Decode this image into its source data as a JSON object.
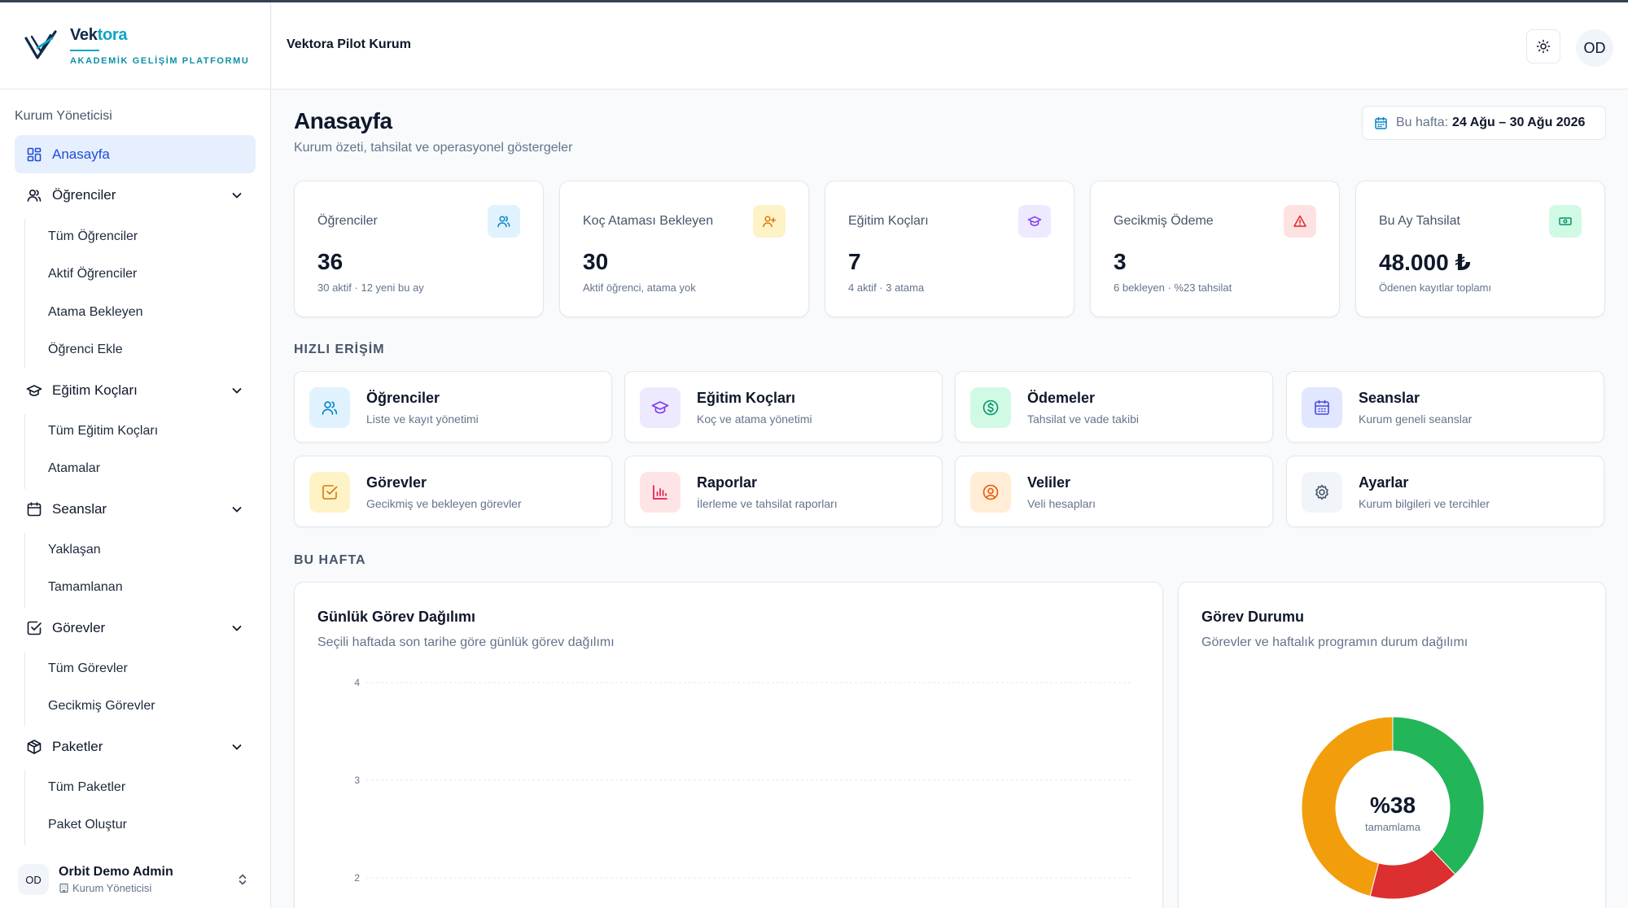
{
  "brand": {
    "name_part1": "Vek",
    "name_part2": "tora",
    "subtitle": "AKADEMİK GELİŞİM PLATFORMU"
  },
  "sidebar": {
    "role_label": "Kurum Yöneticisi",
    "home": "Anasayfa",
    "groups": [
      {
        "label": "Öğrenciler",
        "icon": "users-icon",
        "items": [
          "Tüm Öğrenciler",
          "Aktif Öğrenciler",
          "Atama Bekleyen",
          "Öğrenci Ekle"
        ]
      },
      {
        "label": "Eğitim Koçları",
        "icon": "graduation-cap-icon",
        "items": [
          "Tüm Eğitim Koçları",
          "Atamalar"
        ]
      },
      {
        "label": "Seanslar",
        "icon": "calendar-icon",
        "items": [
          "Yaklaşan",
          "Tamamlanan"
        ]
      },
      {
        "label": "Görevler",
        "icon": "checkbox-icon",
        "items": [
          "Tüm Görevler",
          "Gecikmiş Görevler"
        ]
      },
      {
        "label": "Paketler",
        "icon": "package-icon",
        "items": [
          "Tüm Paketler",
          "Paket Oluştur"
        ]
      }
    ],
    "user": {
      "initials": "OD",
      "name": "Orbit Demo Admin",
      "role": "Kurum Yöneticisi"
    }
  },
  "header": {
    "org_name": "Vektora Pilot Kurum",
    "avatar_initials": "OD",
    "theme_icon": "sun-icon"
  },
  "page": {
    "title": "Anasayfa",
    "subtitle": "Kurum özeti, tahsilat ve operasyonel göstergeler",
    "week_label": "Bu hafta:",
    "week_value": "24 Ağu – 30 Ağu 2026"
  },
  "stats": [
    {
      "label": "Öğrenciler",
      "value": "36",
      "note": "30 aktif · 12 yeni bu ay",
      "icon": "users-icon",
      "color": "#0284c7",
      "bg": "#e0f2fe"
    },
    {
      "label": "Koç Ataması Bekleyen",
      "value": "30",
      "note": "Aktif öğrenci, atama yok",
      "icon": "user-plus-icon",
      "color": "#d97706",
      "bg": "#fef3c7"
    },
    {
      "label": "Eğitim Koçları",
      "value": "7",
      "note": "4 aktif · 3 atama",
      "icon": "graduation-cap-icon",
      "color": "#7c3aed",
      "bg": "#ede9fe"
    },
    {
      "label": "Gecikmiş Ödeme",
      "value": "3",
      "note": "6 bekleyen · %23 tahsilat",
      "icon": "alert-triangle-icon",
      "color": "#dc2626",
      "bg": "#fee2e2"
    },
    {
      "label": "Bu Ay Tahsilat",
      "value": "48.000 ₺",
      "note": "Ödenen kayıtlar toplamı",
      "icon": "banknote-icon",
      "color": "#059669",
      "bg": "#d1fae5"
    }
  ],
  "quick_access": {
    "title": "HIZLI ERİŞİM",
    "items": [
      {
        "title": "Öğrenciler",
        "desc": "Liste ve kayıt yönetimi",
        "icon": "users-icon",
        "color": "#0284c7",
        "bg": "#e0f2fe"
      },
      {
        "title": "Eğitim Koçları",
        "desc": "Koç ve atama yönetimi",
        "icon": "graduation-cap-icon",
        "color": "#7c3aed",
        "bg": "#ede9fe"
      },
      {
        "title": "Ödemeler",
        "desc": "Tahsilat ve vade takibi",
        "icon": "dollar-circle-icon",
        "color": "#059669",
        "bg": "#d1fae5"
      },
      {
        "title": "Seanslar",
        "desc": "Kurum geneli seanslar",
        "icon": "calendar-icon",
        "color": "#4f46e5",
        "bg": "#e0e7ff"
      },
      {
        "title": "Görevler",
        "desc": "Gecikmiş ve bekleyen görevler",
        "icon": "checkbox-icon",
        "color": "#d97706",
        "bg": "#fef3c7"
      },
      {
        "title": "Raporlar",
        "desc": "İlerleme ve tahsilat raporları",
        "icon": "bar-chart-icon",
        "color": "#e11d48",
        "bg": "#ffe4e6"
      },
      {
        "title": "Veliler",
        "desc": "Veli hesapları",
        "icon": "user-circle-icon",
        "color": "#ea580c",
        "bg": "#ffedd5"
      },
      {
        "title": "Ayarlar",
        "desc": "Kurum bilgileri ve tercihler",
        "icon": "gear-icon",
        "color": "#475569",
        "bg": "#f1f5f9"
      }
    ]
  },
  "this_week": {
    "title": "BU HAFTA"
  },
  "daily_chart": {
    "title": "Günlük Görev Dağılımı",
    "subtitle": "Seçili haftada son tarihe göre günlük görev dağılımı"
  },
  "status_chart": {
    "title": "Görev Durumu",
    "subtitle": "Görevler ve haftalık programın durum dağılımı",
    "center_value": "%38",
    "center_label": "tamamlama"
  },
  "chart_data": [
    {
      "type": "bar",
      "title": "Günlük Görev Dağılımı",
      "yticks_visible": [
        4,
        3,
        2
      ],
      "grid": true,
      "note": "Only the upper part of the chart is visible; no bars visible in the shown range."
    },
    {
      "type": "pie",
      "title": "Görev Durumu",
      "donut": true,
      "slices": [
        {
          "color": "#22b55a",
          "value": 38
        },
        {
          "color": "#dc2f2f",
          "value": 16
        },
        {
          "color": "#f29d0c",
          "value": 46
        }
      ],
      "center_text": "%38"
    }
  ]
}
